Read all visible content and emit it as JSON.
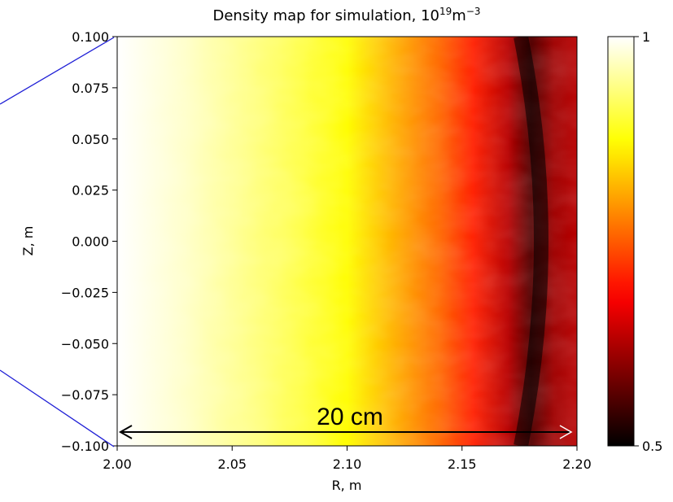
{
  "chart_data": {
    "type": "heatmap",
    "title": "Density map for simulation, 10",
    "title_unit_exp": "19",
    "title_unit": "m",
    "title_unit_exp2": "−3",
    "xlabel": "R, m",
    "ylabel": "Z, m",
    "xlim": [
      2.0,
      2.2
    ],
    "ylim": [
      -0.1,
      0.1
    ],
    "x_ticks": [
      2.0,
      2.05,
      2.1,
      2.15,
      2.2
    ],
    "x_tick_labels": [
      "2.00",
      "2.05",
      "2.10",
      "2.15",
      "2.20"
    ],
    "y_ticks": [
      0.1,
      0.075,
      0.05,
      0.025,
      0.0,
      -0.025,
      -0.05,
      -0.075,
      -0.1
    ],
    "y_tick_labels": [
      "0.100",
      "0.075",
      "0.050",
      "0.025",
      "0.000",
      "−0.025",
      "−0.050",
      "−0.075",
      "−0.100"
    ],
    "colorbar": {
      "colormap": "hot",
      "min": 0.5,
      "max": 1,
      "tick_labels": [
        "1",
        "0.5"
      ]
    },
    "density_profile_R": [
      2.0,
      2.03,
      2.06,
      2.08,
      2.1,
      2.12,
      2.14,
      2.155,
      2.17,
      2.18,
      2.19,
      2.2
    ],
    "density_profile_values": [
      1.0,
      0.97,
      0.93,
      0.9,
      0.86,
      0.8,
      0.74,
      0.68,
      0.6,
      0.52,
      0.58,
      0.6
    ],
    "annotation": {
      "text": "20 cm",
      "arrow_from_R": 2.0,
      "arrow_to_R": 2.2,
      "arrow_Z": -0.0925
    }
  }
}
